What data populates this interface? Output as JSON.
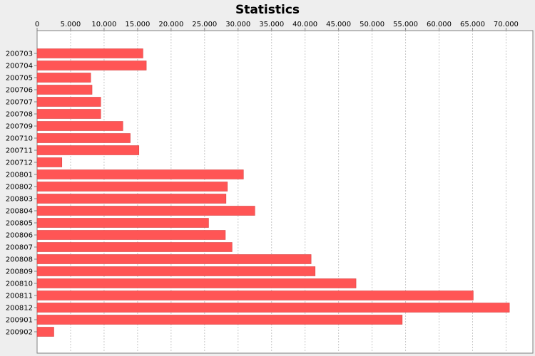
{
  "chart_data": {
    "type": "bar",
    "orientation": "horizontal",
    "title": "Statistics",
    "xlabel": "",
    "ylabel": "",
    "xlim": [
      0,
      74000
    ],
    "x_ticks": [
      0,
      5000,
      10000,
      15000,
      20000,
      25000,
      30000,
      35000,
      40000,
      45000,
      50000,
      55000,
      60000,
      65000,
      70000
    ],
    "x_tick_labels": [
      "0",
      "5.000",
      "10.000",
      "15.000",
      "20.000",
      "25.000",
      "30.000",
      "35.000",
      "40.000",
      "45.000",
      "50.000",
      "55.000",
      "60.000",
      "65.000",
      "70.000"
    ],
    "axis_position": "top",
    "grid": true,
    "legend": "none",
    "colors": {
      "bar": "#ff5555",
      "background": "#eeeeee",
      "plot_background": "#ffffff",
      "grid": "#c8c8c8"
    },
    "categories": [
      "200703",
      "200704",
      "200705",
      "200706",
      "200707",
      "200708",
      "200709",
      "200710",
      "200711",
      "200712",
      "200801",
      "200802",
      "200803",
      "200804",
      "200805",
      "200806",
      "200807",
      "200808",
      "200809",
      "200810",
      "200811",
      "200812",
      "200901",
      "200902"
    ],
    "values": [
      15800,
      16300,
      8000,
      8200,
      9500,
      9500,
      12800,
      13900,
      15200,
      3700,
      30800,
      28400,
      28200,
      32500,
      25600,
      28100,
      29100,
      40900,
      41500,
      47600,
      65100,
      70500,
      54500,
      2500
    ]
  }
}
